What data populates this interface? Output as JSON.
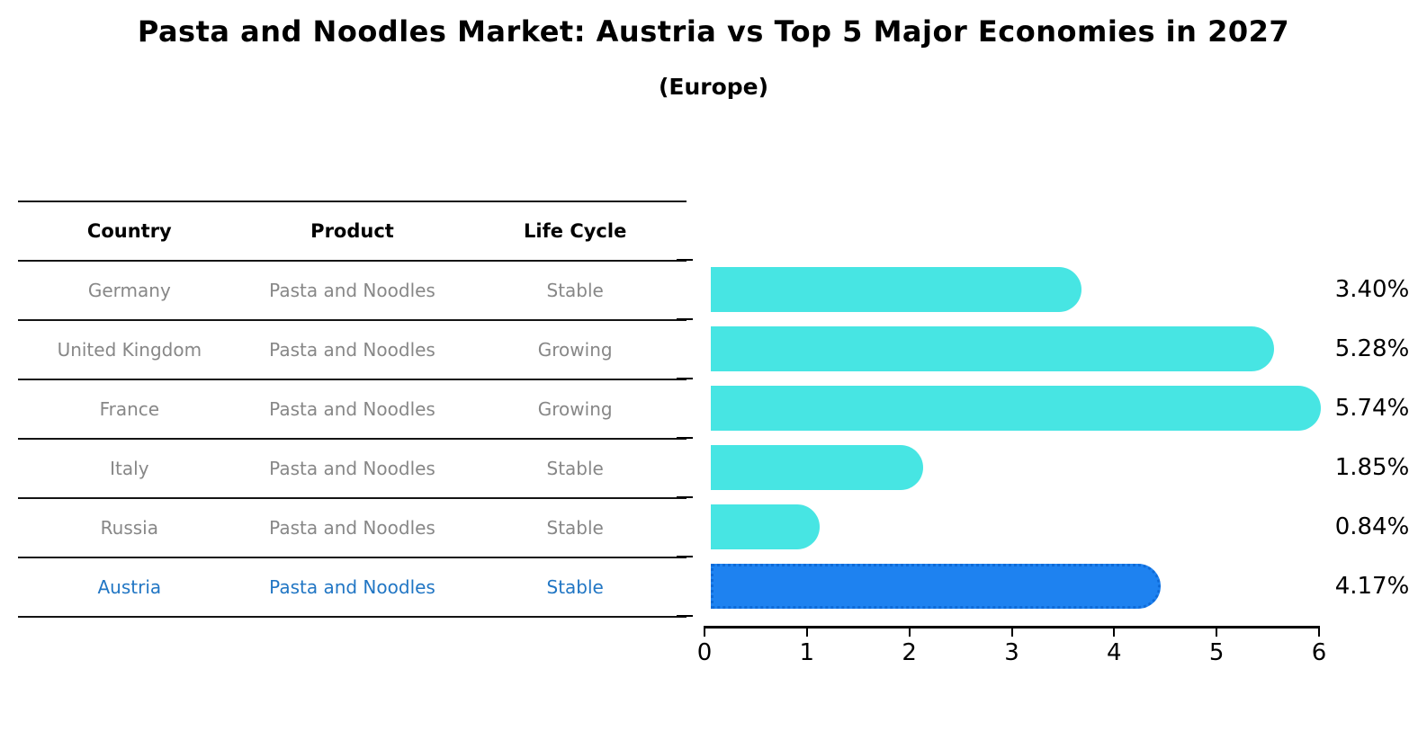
{
  "header": {
    "title": "Pasta and Noodles Market: Austria vs Top 5 Major Economies in 2027",
    "subtitle": "(Europe)"
  },
  "table": {
    "columns": [
      "Country",
      "Product",
      "Life Cycle"
    ],
    "rows": [
      {
        "country": "Germany",
        "product": "Pasta and Noodles",
        "life_cycle": "Stable",
        "highlight": false
      },
      {
        "country": "United Kingdom",
        "product": "Pasta and Noodles",
        "life_cycle": "Growing",
        "highlight": false
      },
      {
        "country": "France",
        "product": "Pasta and Noodles",
        "life_cycle": "Growing",
        "highlight": false
      },
      {
        "country": "Italy",
        "product": "Pasta and Noodles",
        "life_cycle": "Stable",
        "highlight": false
      },
      {
        "country": "Russia",
        "product": "Pasta and Noodles",
        "life_cycle": "Stable",
        "highlight": false
      },
      {
        "country": "Austria",
        "product": "Pasta and Noodles",
        "life_cycle": "Stable",
        "highlight": true
      }
    ]
  },
  "chart_data": {
    "type": "bar",
    "orientation": "horizontal",
    "title": "Pasta and Noodles Market: Austria vs Top 5 Major Economies in 2027",
    "subtitle": "(Europe)",
    "categories": [
      "Germany",
      "United Kingdom",
      "France",
      "Italy",
      "Russia",
      "Austria"
    ],
    "values": [
      3.4,
      5.28,
      5.74,
      1.85,
      0.84,
      4.17
    ],
    "value_labels": [
      "3.40%",
      "5.28%",
      "5.74%",
      "1.85%",
      "0.84%",
      "4.17%"
    ],
    "xlim": [
      0,
      6
    ],
    "x_ticks": [
      0,
      1,
      2,
      3,
      4,
      5,
      6
    ],
    "grid": false,
    "legend": false,
    "highlight_index": 5,
    "bar_color": "#47E5E3",
    "highlight_bar_color": "#1E82F0",
    "highlight_bar_border_color": "#0F6BD8"
  },
  "colors": {
    "highlight_text": "#2176C4",
    "row_text": "#878787",
    "header_text": "#000000",
    "line": "#141414"
  }
}
